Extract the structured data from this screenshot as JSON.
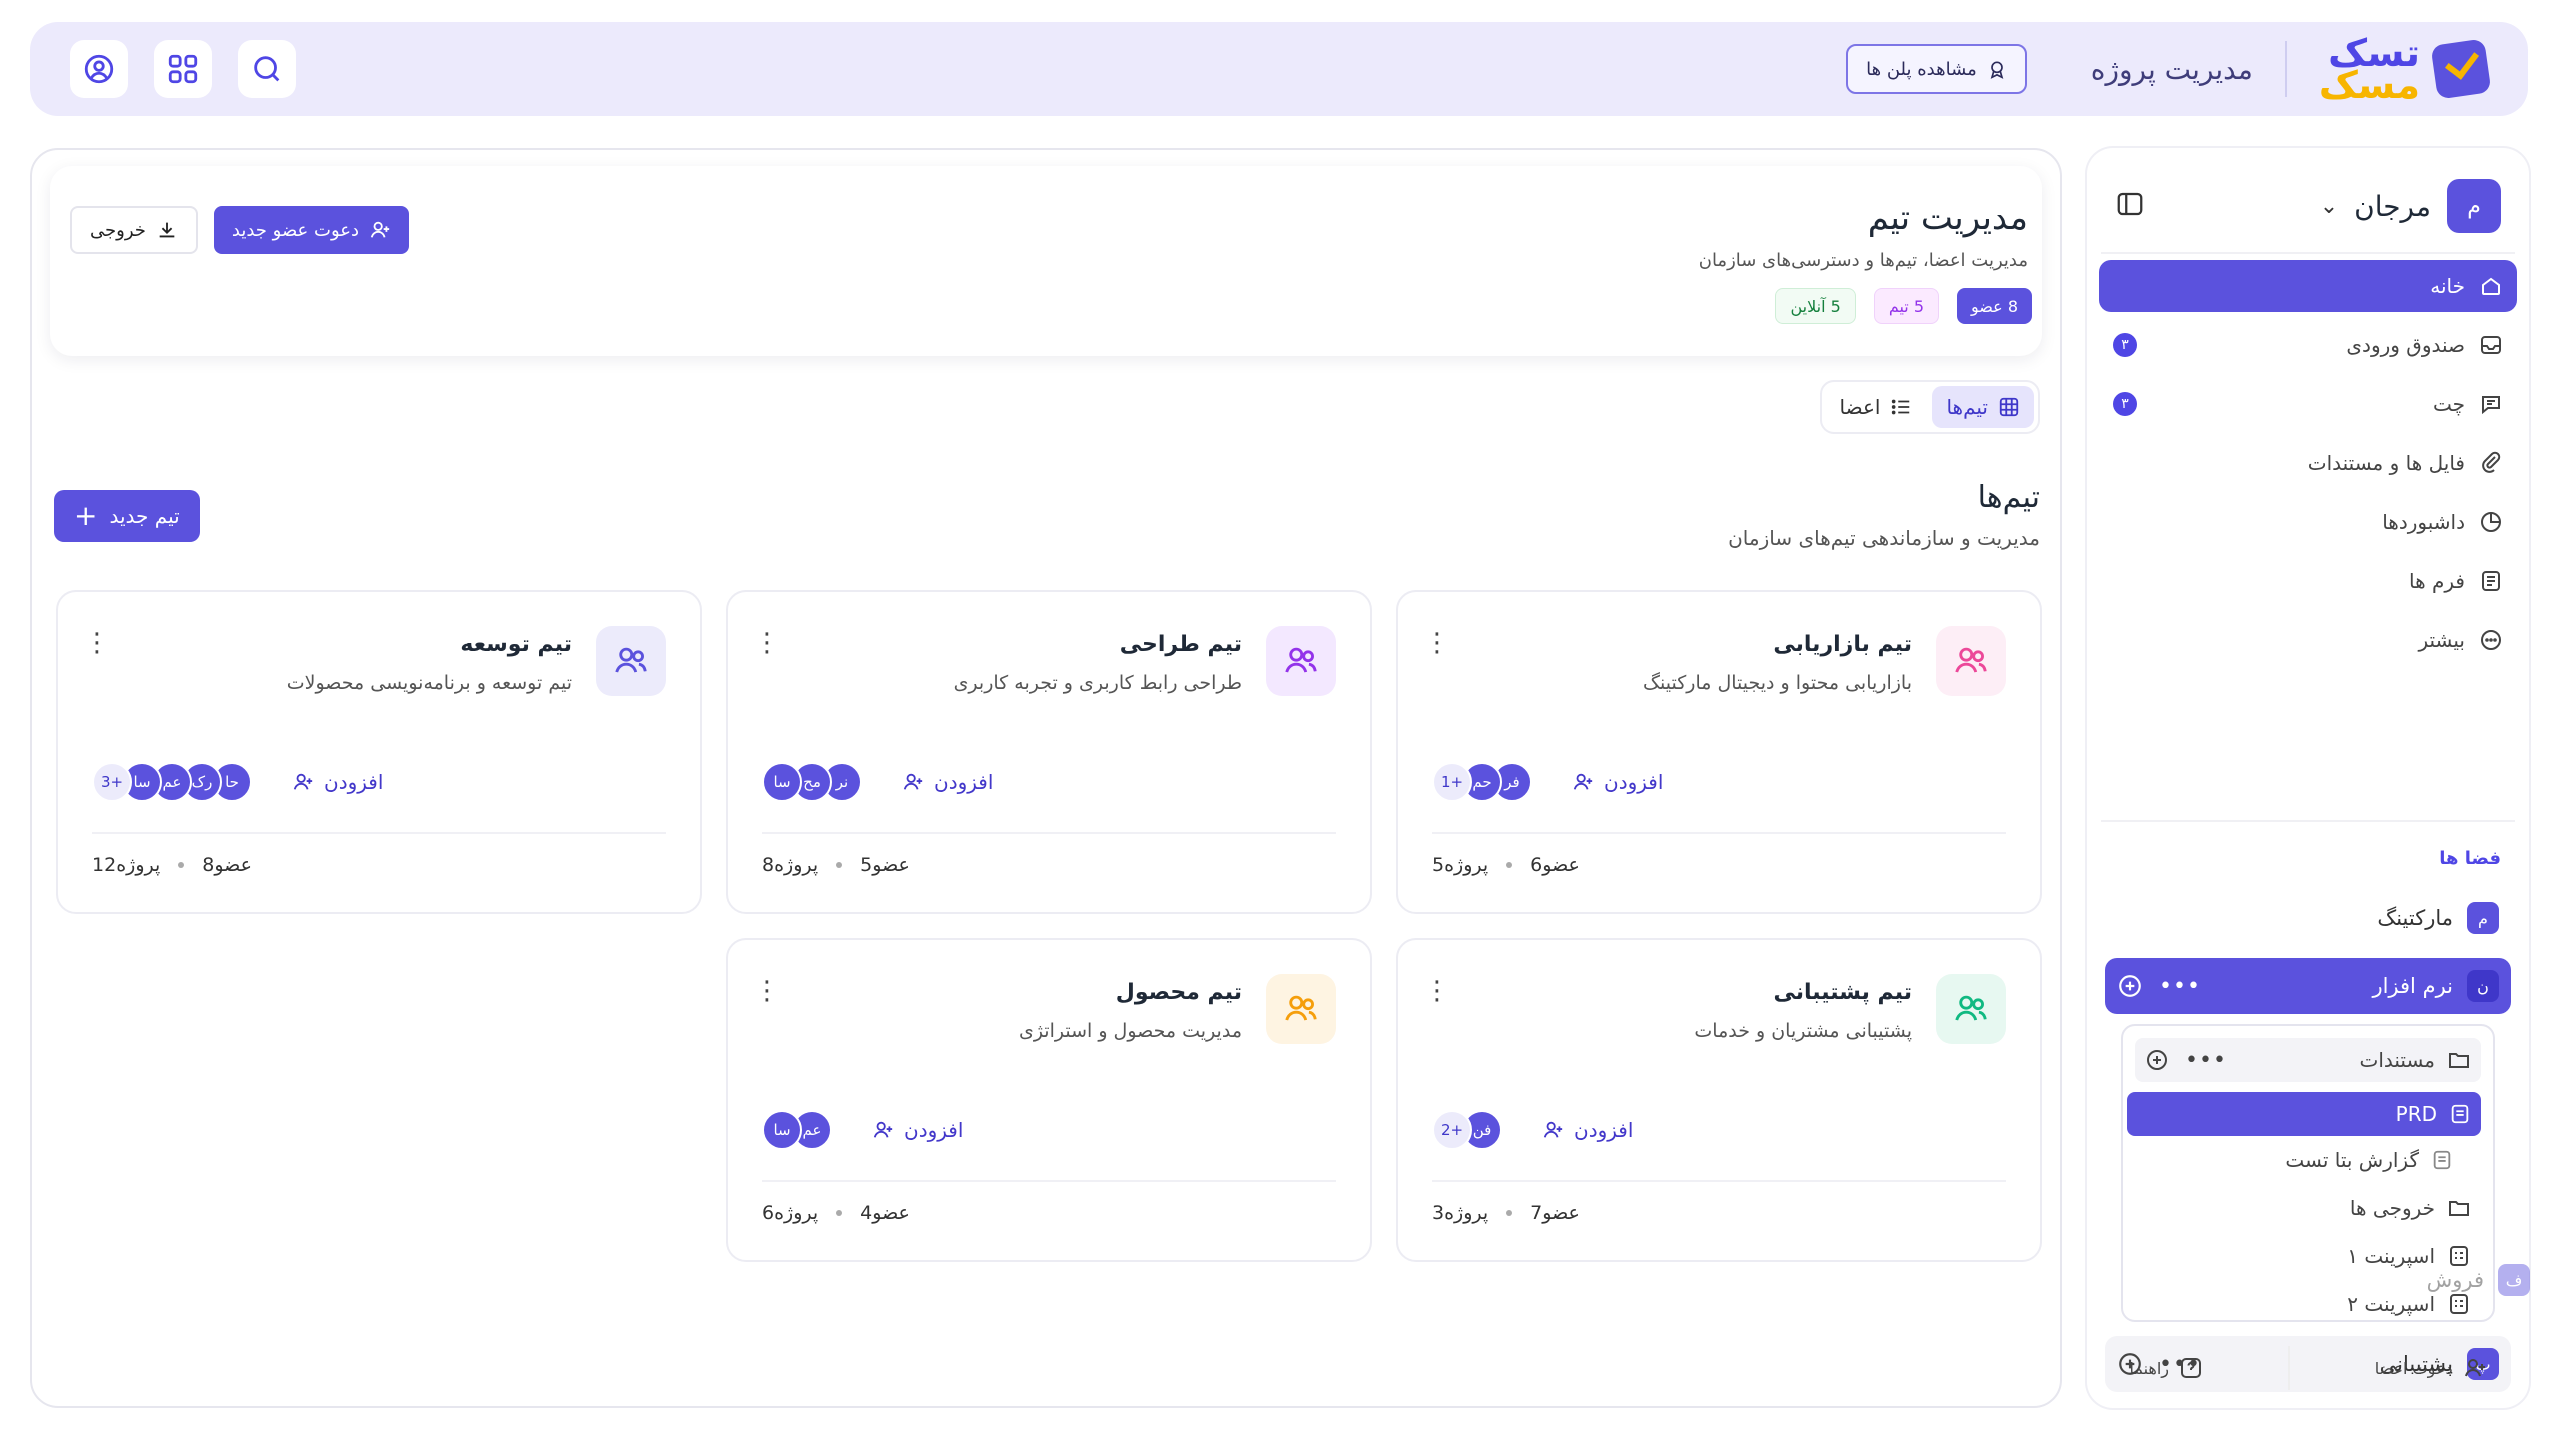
{
  "brand": {
    "line1": "تسک",
    "line2": "مسک",
    "subtitle": "مدیریت پروژه"
  },
  "topbar": {
    "plans_label": "مشاهده پلن ها"
  },
  "sidebar": {
    "workspace_initial": "م",
    "workspace_name": "مرجان",
    "nav": [
      {
        "label": "خانه",
        "badge": ""
      },
      {
        "label": "صندوق ورودی",
        "badge": "۳"
      },
      {
        "label": "چت",
        "badge": "۳"
      },
      {
        "label": "فایل ها و مستندات",
        "badge": ""
      },
      {
        "label": "داشبوردها",
        "badge": ""
      },
      {
        "label": "فرم ها",
        "badge": ""
      },
      {
        "label": "بیشتر",
        "badge": ""
      }
    ],
    "spaces_title": "فضا ها",
    "spaces": [
      {
        "initial": "م",
        "label": "مارکتینگ"
      },
      {
        "initial": "ن",
        "label": "نرم افزار"
      },
      {
        "initial": "پ",
        "label": "پشتیبانی"
      },
      {
        "initial": "ف",
        "label": "فروش"
      }
    ],
    "tree": {
      "folder": "مستندات",
      "items": [
        "PRD",
        "گزارش بتا تست",
        "خروجی ها",
        "اسپرینت ۱",
        "اسپرینت ۲"
      ]
    },
    "footer": {
      "invite": "دعوت اعضا",
      "help": "راهنما"
    }
  },
  "header": {
    "title": "مدیریت تیم",
    "subtitle": "مدیریت اعضا، تیم‌ها و دسترسی‌های سازمان",
    "stats": {
      "members": "8 عضو",
      "teams": "5 تیم",
      "online": "5 آنلاین"
    },
    "invite_label": "دعوت عضو جدید",
    "export_label": "خروجی"
  },
  "view_toggle": {
    "teams": "تیم‌ها",
    "members": "اعضا"
  },
  "section": {
    "title": "تیم‌ها",
    "subtitle": "مدیریت و سازماندهی تیم‌های سازمان",
    "new_team_label": "تیم جدید"
  },
  "add_label": "افزودن",
  "teams": [
    {
      "name": "تیم بازاریابی",
      "desc": "بازاریابی محتوا و دیجیتال مارکتینگ",
      "avatars": [
        "حم",
        "فر"
      ],
      "more": "+1",
      "projects": "5",
      "members": "6",
      "color": "#ec4899",
      "bg": "#fdeef6"
    },
    {
      "name": "تیم طراحی",
      "desc": "طراحی رابط کاربری و تجربه کاربری",
      "avatars": [
        "سا",
        "مح",
        "نر"
      ],
      "more": "",
      "projects": "8",
      "members": "5",
      "color": "#9333ea",
      "bg": "#f3e8ff"
    },
    {
      "name": "تیم توسعه",
      "desc": "تیم توسعه و برنامه‌نویسی محصولات",
      "avatars": [
        "سا",
        "عم",
        "رک",
        "حا"
      ],
      "more": "+3",
      "projects": "12",
      "members": "8",
      "color": "#5b52dd",
      "bg": "#ecebfb"
    },
    {
      "name": "تیم پشتیبانی",
      "desc": "پشتیبانی مشتریان و خدمات",
      "avatars": [
        "فن"
      ],
      "more": "+2",
      "projects": "3",
      "members": "7",
      "color": "#10b981",
      "bg": "#e7f8f1"
    },
    {
      "name": "تیم محصول",
      "desc": "مدیریت محصول و استراتژی",
      "avatars": [
        "سا",
        "عم"
      ],
      "more": "",
      "projects": "6",
      "members": "4",
      "color": "#f59e0b",
      "bg": "#fef4e2"
    }
  ],
  "units": {
    "project": "پروژه",
    "member": "عضو"
  },
  "colors": {
    "accent": "#5b52dd",
    "topbar": "#eceafc"
  }
}
